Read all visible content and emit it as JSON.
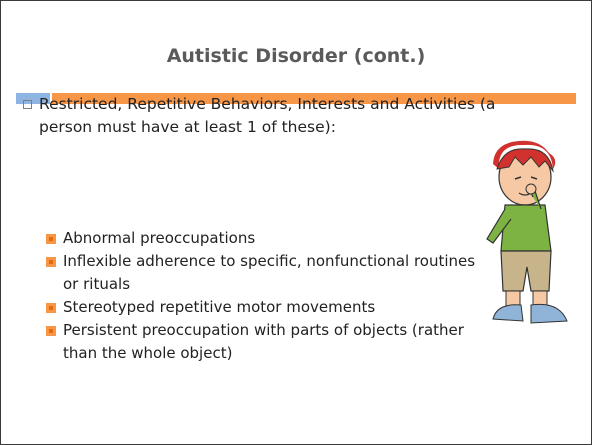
{
  "header": {
    "title": "Autistic Disorder (cont.)"
  },
  "body": {
    "main_bullet": "Restricted, Repetitive Behaviors, Interests and Activities (a person must have at least 1 of these):",
    "sub_bullets": [
      "Abnormal preoccupations",
      "Inflexible adherence to specific, nonfunctional routines or rituals",
      "Stereotyped repetitive motor movements",
      "Persistent preoccupation with parts of objects (rather than the whole object)"
    ]
  }
}
